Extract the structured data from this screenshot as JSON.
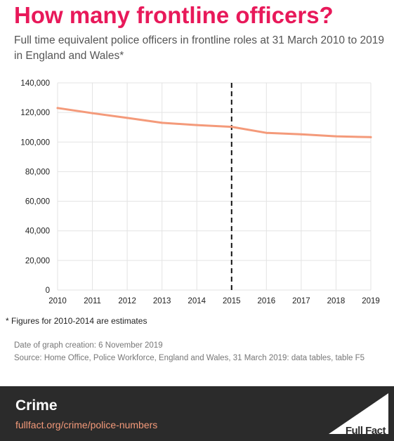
{
  "title": "How many frontline officers?",
  "subtitle": "Full time equivalent police officers in frontline roles at 31 March 2010 to 2019 in England and Wales*",
  "footnote": "*  Figures for 2010-2014 are estimates",
  "date_created": "Date of graph creation: 6 November 2019",
  "source": "Source: Home Office, Police Workforce, England and Wales, 31 March 2019: data tables, table F5",
  "footer": {
    "section": "Crime",
    "link": "fullfact.org/crime/police-numbers",
    "logo_text": "Full Fact"
  },
  "colors": {
    "title": "#e8195a",
    "line": "#f49a7a",
    "footer_bg": "#2b2b2b"
  },
  "chart_data": {
    "type": "line",
    "x": [
      2010,
      2011,
      2012,
      2013,
      2014,
      2015,
      2016,
      2017,
      2018,
      2019
    ],
    "series": [
      {
        "values": [
          123000,
          119500,
          116300,
          113000,
          111500,
          110300,
          106200,
          105200,
          103900,
          103300
        ]
      }
    ],
    "ylim": [
      0,
      140000
    ],
    "yticks": [
      0,
      20000,
      40000,
      60000,
      80000,
      100000,
      120000,
      140000
    ],
    "ytick_labels": [
      "0",
      "20,000",
      "40,000",
      "60,000",
      "80,000",
      "100,000",
      "120,000",
      "140,000"
    ],
    "grid": true,
    "reference_line_x": 2015
  }
}
